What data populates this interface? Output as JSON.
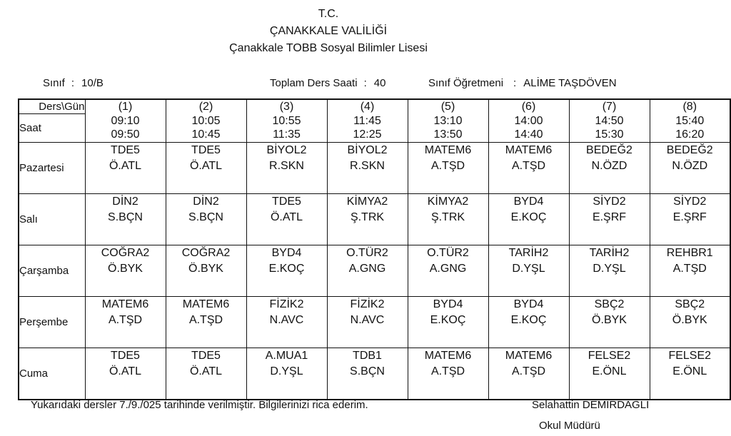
{
  "header": {
    "line1": "T.C.",
    "line2": "ÇANAKKALE VALİLİĞİ",
    "line3": "Çanakkale TOBB Sosyal Bilimler Lisesi"
  },
  "info": {
    "colon": ":",
    "class_label": "Sınıf",
    "class_value": "10/B",
    "total_label": "Toplam Ders Saati",
    "total_value": "40",
    "teacher_label": "Sınıf Öğretmeni",
    "teacher_value": "ALİME TAŞDÖVEN"
  },
  "table": {
    "corner_label": "Ders\\Gün",
    "saat_label": "Saat",
    "periods": [
      {
        "num": "(1)",
        "start": "09:10",
        "end": "09:50"
      },
      {
        "num": "(2)",
        "start": "10:05",
        "end": "10:45"
      },
      {
        "num": "(3)",
        "start": "10:55",
        "end": "11:35"
      },
      {
        "num": "(4)",
        "start": "11:45",
        "end": "12:25"
      },
      {
        "num": "(5)",
        "start": "13:10",
        "end": "13:50"
      },
      {
        "num": "(6)",
        "start": "14:00",
        "end": "14:40"
      },
      {
        "num": "(7)",
        "start": "14:50",
        "end": "15:30"
      },
      {
        "num": "(8)",
        "start": "15:40",
        "end": "16:20"
      }
    ],
    "days": [
      {
        "name": "Pazartesi",
        "lessons": [
          {
            "code": "TDE5",
            "teacher": "Ö.ATL"
          },
          {
            "code": "TDE5",
            "teacher": "Ö.ATL"
          },
          {
            "code": "BİYOL2",
            "teacher": "R.SKN"
          },
          {
            "code": "BİYOL2",
            "teacher": "R.SKN"
          },
          {
            "code": "MATEM6",
            "teacher": "A.TŞD"
          },
          {
            "code": "MATEM6",
            "teacher": "A.TŞD"
          },
          {
            "code": "BEDEĞ2",
            "teacher": "N.ÖZD"
          },
          {
            "code": "BEDEĞ2",
            "teacher": "N.ÖZD"
          }
        ]
      },
      {
        "name": "Salı",
        "lessons": [
          {
            "code": "DİN2",
            "teacher": "S.BÇN"
          },
          {
            "code": "DİN2",
            "teacher": "S.BÇN"
          },
          {
            "code": "TDE5",
            "teacher": "Ö.ATL"
          },
          {
            "code": "KİMYA2",
            "teacher": "Ş.TRK"
          },
          {
            "code": "KİMYA2",
            "teacher": "Ş.TRK"
          },
          {
            "code": "BYD4",
            "teacher": "E.KOÇ"
          },
          {
            "code": "SİYD2",
            "teacher": "E.ŞRF"
          },
          {
            "code": "SİYD2",
            "teacher": "E.ŞRF"
          }
        ]
      },
      {
        "name": "Çarşamba",
        "lessons": [
          {
            "code": "COĞRA2",
            "teacher": "Ö.BYK"
          },
          {
            "code": "COĞRA2",
            "teacher": "Ö.BYK"
          },
          {
            "code": "BYD4",
            "teacher": "E.KOÇ"
          },
          {
            "code": "O.TÜR2",
            "teacher": "A.GNG"
          },
          {
            "code": "O.TÜR2",
            "teacher": "A.GNG"
          },
          {
            "code": "TARİH2",
            "teacher": "D.YŞL"
          },
          {
            "code": "TARİH2",
            "teacher": "D.YŞL"
          },
          {
            "code": "REHBR1",
            "teacher": "A.TŞD"
          }
        ]
      },
      {
        "name": "Perşembe",
        "lessons": [
          {
            "code": "MATEM6",
            "teacher": "A.TŞD"
          },
          {
            "code": "MATEM6",
            "teacher": "A.TŞD"
          },
          {
            "code": "FİZİK2",
            "teacher": "N.AVC"
          },
          {
            "code": "FİZİK2",
            "teacher": "N.AVC"
          },
          {
            "code": "BYD4",
            "teacher": "E.KOÇ"
          },
          {
            "code": "BYD4",
            "teacher": "E.KOÇ"
          },
          {
            "code": "SBÇ2",
            "teacher": "Ö.BYK"
          },
          {
            "code": "SBÇ2",
            "teacher": "Ö.BYK"
          }
        ]
      },
      {
        "name": "Cuma",
        "lessons": [
          {
            "code": "TDE5",
            "teacher": "Ö.ATL"
          },
          {
            "code": "TDE5",
            "teacher": "Ö.ATL"
          },
          {
            "code": "A.MUA1",
            "teacher": "D.YŞL"
          },
          {
            "code": "TDB1",
            "teacher": "S.BÇN"
          },
          {
            "code": "MATEM6",
            "teacher": "A.TŞD"
          },
          {
            "code": "MATEM6",
            "teacher": "A.TŞD"
          },
          {
            "code": "FELSE2",
            "teacher": "E.ÖNL"
          },
          {
            "code": "FELSE2",
            "teacher": "E.ÖNL"
          }
        ]
      }
    ]
  },
  "footer": {
    "note": "Yukarıdaki dersler 7./9./025  tarihinde verilmiştir. Bilgilerinizi rica ederim.",
    "signer_name": "Selahattin DEMİRDAĞLI",
    "signer_title": "Okul Müdürü"
  }
}
